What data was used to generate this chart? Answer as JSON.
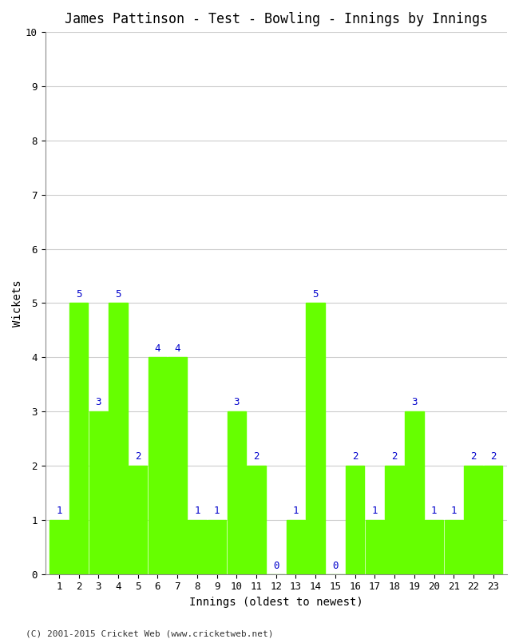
{
  "title": "James Pattinson - Test - Bowling - Innings by Innings",
  "xlabel": "Innings (oldest to newest)",
  "ylabel": "Wickets",
  "innings": [
    1,
    2,
    3,
    4,
    5,
    6,
    7,
    8,
    9,
    10,
    11,
    12,
    13,
    14,
    15,
    16,
    17,
    18,
    19,
    20,
    21,
    22,
    23
  ],
  "wickets": [
    1,
    5,
    3,
    5,
    2,
    4,
    4,
    1,
    1,
    3,
    2,
    0,
    1,
    5,
    0,
    2,
    1,
    2,
    3,
    1,
    1,
    2,
    2
  ],
  "bar_color": "#66ff00",
  "label_color": "#0000cc",
  "ylim": [
    0,
    10
  ],
  "yticks": [
    0,
    1,
    2,
    3,
    4,
    5,
    6,
    7,
    8,
    9,
    10
  ],
  "background_color": "#ffffff",
  "footer": "(C) 2001-2015 Cricket Web (www.cricketweb.net)",
  "title_fontsize": 12,
  "axis_label_fontsize": 10,
  "tick_fontsize": 9,
  "label_fontsize": 9
}
